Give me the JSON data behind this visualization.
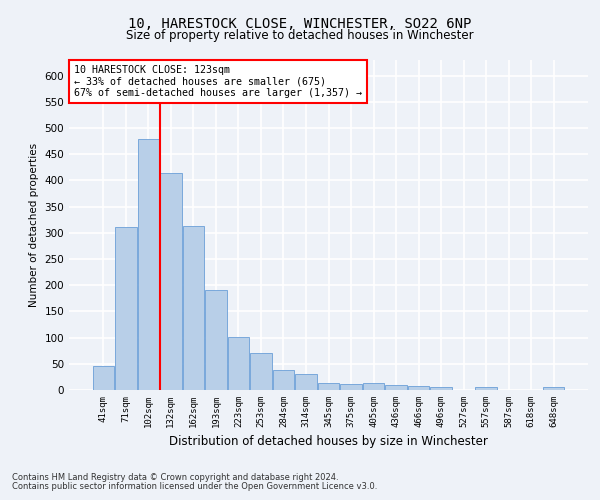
{
  "title": "10, HARESTOCK CLOSE, WINCHESTER, SO22 6NP",
  "subtitle": "Size of property relative to detached houses in Winchester",
  "xlabel": "Distribution of detached houses by size in Winchester",
  "ylabel": "Number of detached properties",
  "bar_color": "#b8cfe8",
  "bar_edge_color": "#6a9fd8",
  "categories": [
    "41sqm",
    "71sqm",
    "102sqm",
    "132sqm",
    "162sqm",
    "193sqm",
    "223sqm",
    "253sqm",
    "284sqm",
    "314sqm",
    "345sqm",
    "375sqm",
    "405sqm",
    "436sqm",
    "466sqm",
    "496sqm",
    "527sqm",
    "557sqm",
    "587sqm",
    "618sqm",
    "648sqm"
  ],
  "values": [
    46,
    311,
    480,
    414,
    313,
    190,
    102,
    70,
    38,
    30,
    14,
    12,
    14,
    10,
    8,
    5,
    0,
    5,
    0,
    0,
    5
  ],
  "ylim": [
    0,
    630
  ],
  "yticks": [
    0,
    50,
    100,
    150,
    200,
    250,
    300,
    350,
    400,
    450,
    500,
    550,
    600
  ],
  "red_line_index": 3,
  "annotation_text": "10 HARESTOCK CLOSE: 123sqm\n← 33% of detached houses are smaller (675)\n67% of semi-detached houses are larger (1,357) →",
  "annotation_box_color": "white",
  "annotation_box_edge": "red",
  "footer1": "Contains HM Land Registry data © Crown copyright and database right 2024.",
  "footer2": "Contains public sector information licensed under the Open Government Licence v3.0.",
  "background_color": "#eef2f8",
  "grid_color": "white"
}
